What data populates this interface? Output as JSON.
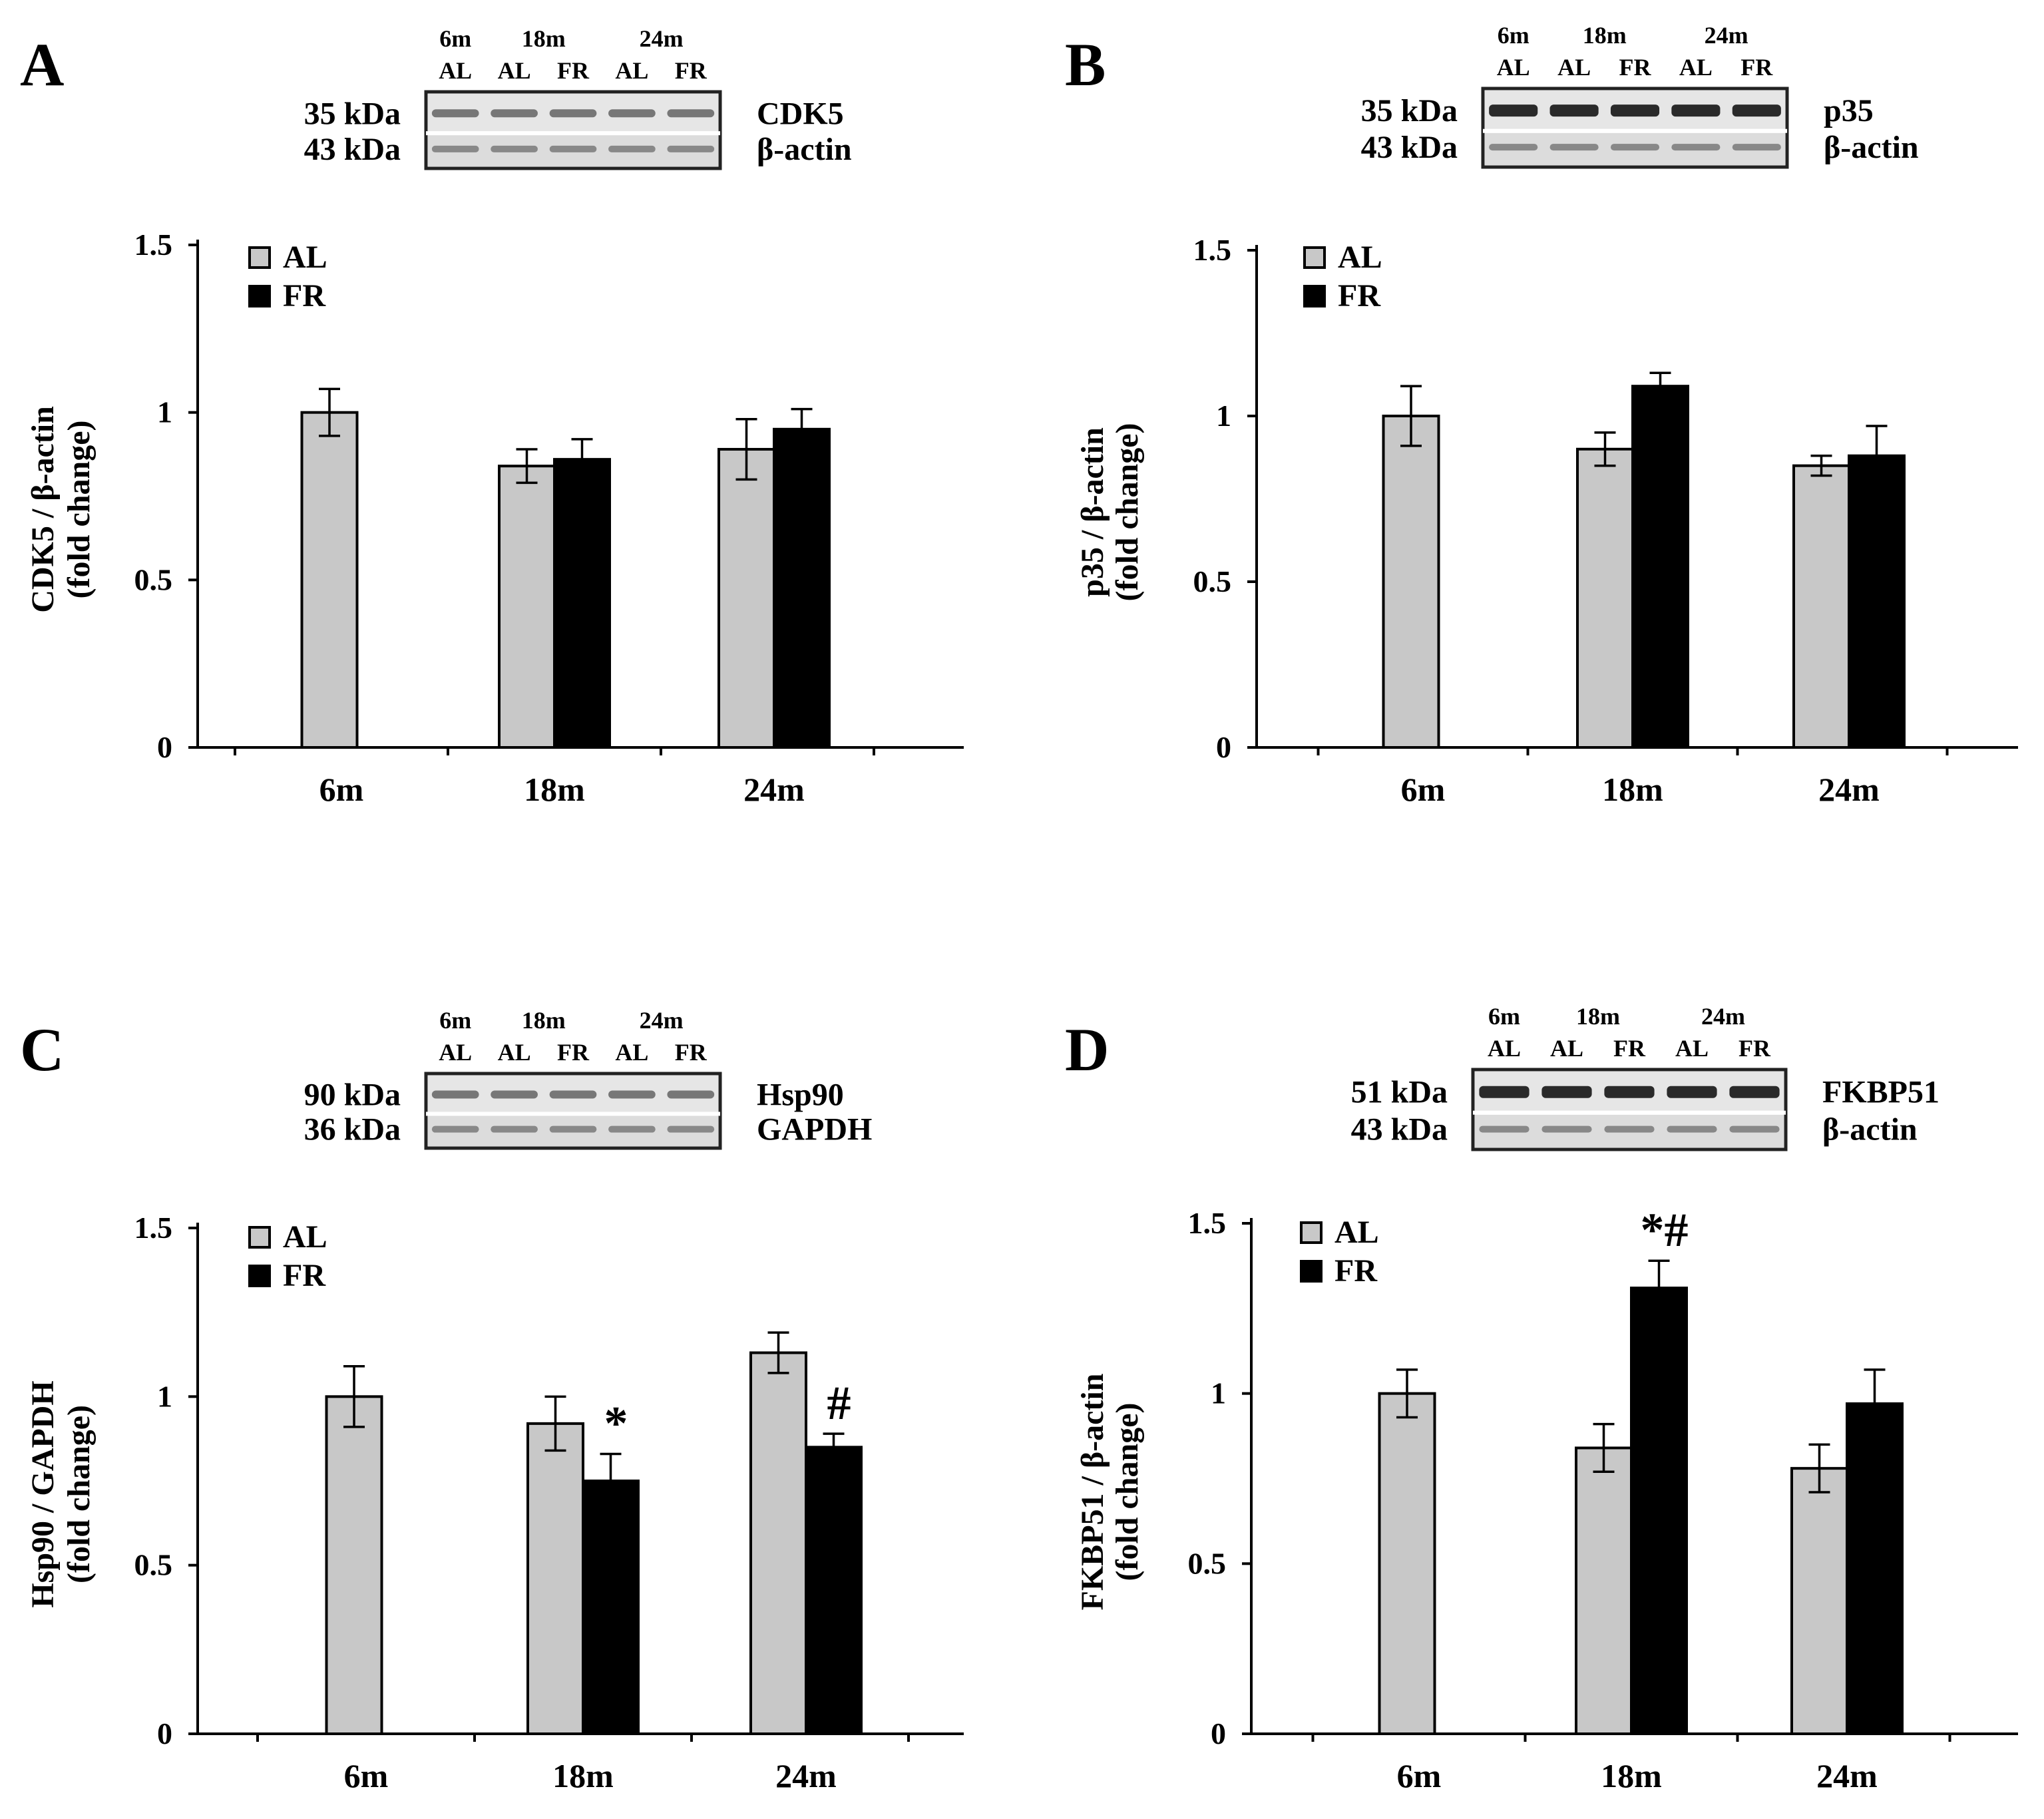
{
  "chart_data": [
    {
      "type": "bar",
      "panel": "A",
      "blot": {
        "header_ages": [
          "6m",
          "18m",
          "24m"
        ],
        "lane_labels": [
          "AL",
          "AL",
          "FR",
          "AL",
          "FR"
        ],
        "rows": [
          {
            "size": "35 kDa",
            "name": "CDK5"
          },
          {
            "size": "43 kDa",
            "name": "β-actin"
          }
        ]
      },
      "ylabel": "CDK5 /  β-actin",
      "ylabel2": "(fold change)",
      "ylim": [
        0,
        1.5
      ],
      "yticks": [
        {
          "value": 0,
          "label": "0"
        },
        {
          "value": 0.5,
          "label": "0.5"
        },
        {
          "value": 1,
          "label": "1"
        },
        {
          "value": 1.5,
          "label": "1.5"
        }
      ],
      "categories": [
        "6m",
        "18m",
        "24m"
      ],
      "legend": [
        "AL",
        "FR"
      ],
      "series": [
        {
          "name": "AL",
          "color": "#c8c8c8",
          "values": [
            1.0,
            0.84,
            0.89
          ],
          "errors": [
            0.07,
            0.05,
            0.09
          ],
          "annotations": [
            "",
            "",
            ""
          ]
        },
        {
          "name": "FR",
          "color": "#000000",
          "values": [
            null,
            0.86,
            0.95
          ],
          "errors": [
            null,
            0.06,
            0.06
          ],
          "annotations": [
            "",
            "",
            ""
          ]
        }
      ]
    },
    {
      "type": "bar",
      "panel": "B",
      "blot": {
        "header_ages": [
          "6m",
          "18m",
          "24m"
        ],
        "lane_labels": [
          "AL",
          "AL",
          "FR",
          "AL",
          "FR"
        ],
        "rows": [
          {
            "size": "35 kDa",
            "name": "p35"
          },
          {
            "size": "43 kDa",
            "name": "β-actin"
          }
        ]
      },
      "ylabel": "p35 / β-actin",
      "ylabel2": "(fold change)",
      "ylim": [
        0,
        1.5
      ],
      "yticks": [
        {
          "value": 0,
          "label": "0"
        },
        {
          "value": 0.5,
          "label": "0.5"
        },
        {
          "value": 1,
          "label": "1"
        },
        {
          "value": 1.5,
          "label": "1.5"
        }
      ],
      "categories": [
        "6m",
        "18m",
        "24m"
      ],
      "legend": [
        "AL",
        "FR"
      ],
      "series": [
        {
          "name": "AL",
          "color": "#c8c8c8",
          "values": [
            1.0,
            0.9,
            0.85
          ],
          "errors": [
            0.09,
            0.05,
            0.03
          ],
          "annotations": [
            "",
            "",
            ""
          ]
        },
        {
          "name": "FR",
          "color": "#000000",
          "values": [
            null,
            1.09,
            0.88
          ],
          "errors": [
            null,
            0.04,
            0.09
          ],
          "annotations": [
            "",
            "",
            ""
          ]
        }
      ]
    },
    {
      "type": "bar",
      "panel": "C",
      "blot": {
        "header_ages": [
          "6m",
          "18m",
          "24m"
        ],
        "lane_labels": [
          "AL",
          "AL",
          "FR",
          "AL",
          "FR"
        ],
        "rows": [
          {
            "size": "90 kDa",
            "name": "Hsp90"
          },
          {
            "size": "36 kDa",
            "name": "GAPDH"
          }
        ]
      },
      "ylabel": "Hsp90 / GAPDH",
      "ylabel2": "(fold change)",
      "ylim": [
        0,
        1.5
      ],
      "yticks": [
        {
          "value": 0,
          "label": "0"
        },
        {
          "value": 0.5,
          "label": "0.5"
        },
        {
          "value": 1,
          "label": "1"
        },
        {
          "value": 1.5,
          "label": "1.5"
        }
      ],
      "categories": [
        "6m",
        "18m",
        "24m"
      ],
      "legend": [
        "AL",
        "FR"
      ],
      "series": [
        {
          "name": "AL",
          "color": "#c8c8c8",
          "values": [
            1.0,
            0.92,
            1.13
          ],
          "errors": [
            0.09,
            0.08,
            0.06
          ],
          "annotations": [
            "",
            "",
            ""
          ]
        },
        {
          "name": "FR",
          "color": "#000000",
          "values": [
            null,
            0.75,
            0.85
          ],
          "errors": [
            null,
            0.08,
            0.04
          ],
          "annotations": [
            "",
            "*",
            "#"
          ]
        }
      ]
    },
    {
      "type": "bar",
      "panel": "D",
      "blot": {
        "header_ages": [
          "6m",
          "18m",
          "24m"
        ],
        "lane_labels": [
          "AL",
          "AL",
          "FR",
          "AL",
          "FR"
        ],
        "rows": [
          {
            "size": "51 kDa",
            "name": "FKBP51"
          },
          {
            "size": "43 kDa",
            "name": "β-actin"
          }
        ]
      },
      "ylabel": "FKBP51 / β-actin",
      "ylabel2": "(fold change)",
      "ylim": [
        0,
        1.5
      ],
      "yticks": [
        {
          "value": 0,
          "label": "0"
        },
        {
          "value": 0.5,
          "label": "0.5"
        },
        {
          "value": 1,
          "label": "1"
        },
        {
          "value": 1.5,
          "label": "1.5"
        }
      ],
      "categories": [
        "6m",
        "18m",
        "24m"
      ],
      "legend": [
        "AL",
        "FR"
      ],
      "series": [
        {
          "name": "AL",
          "color": "#c8c8c8",
          "values": [
            1.0,
            0.84,
            0.78
          ],
          "errors": [
            0.07,
            0.07,
            0.07
          ],
          "annotations": [
            "",
            "",
            ""
          ]
        },
        {
          "name": "FR",
          "color": "#000000",
          "values": [
            null,
            1.31,
            0.97
          ],
          "errors": [
            null,
            0.08,
            0.1
          ],
          "annotations": [
            "",
            "*#",
            ""
          ]
        }
      ]
    }
  ]
}
